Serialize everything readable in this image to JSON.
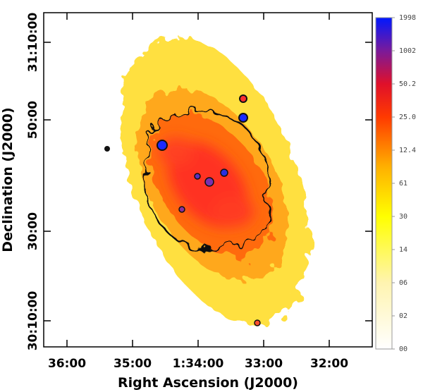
{
  "chart_data": {
    "type": "image",
    "x_label": "Right Ascension (J2000)",
    "y_label": "Declination (J2000)",
    "x_tick_labels": [
      "36:00",
      "35:00",
      "1:34:00",
      "33:00",
      "32:00"
    ],
    "y_tick_labels": [
      "31:10:00",
      "50:00",
      "30:00",
      "30:10:00"
    ],
    "colorbar_labels": [
      "1998",
      "1002",
      "50.2",
      "25.0",
      "12.4",
      "61",
      "30",
      "14",
      "06",
      "02",
      "00"
    ]
  }
}
